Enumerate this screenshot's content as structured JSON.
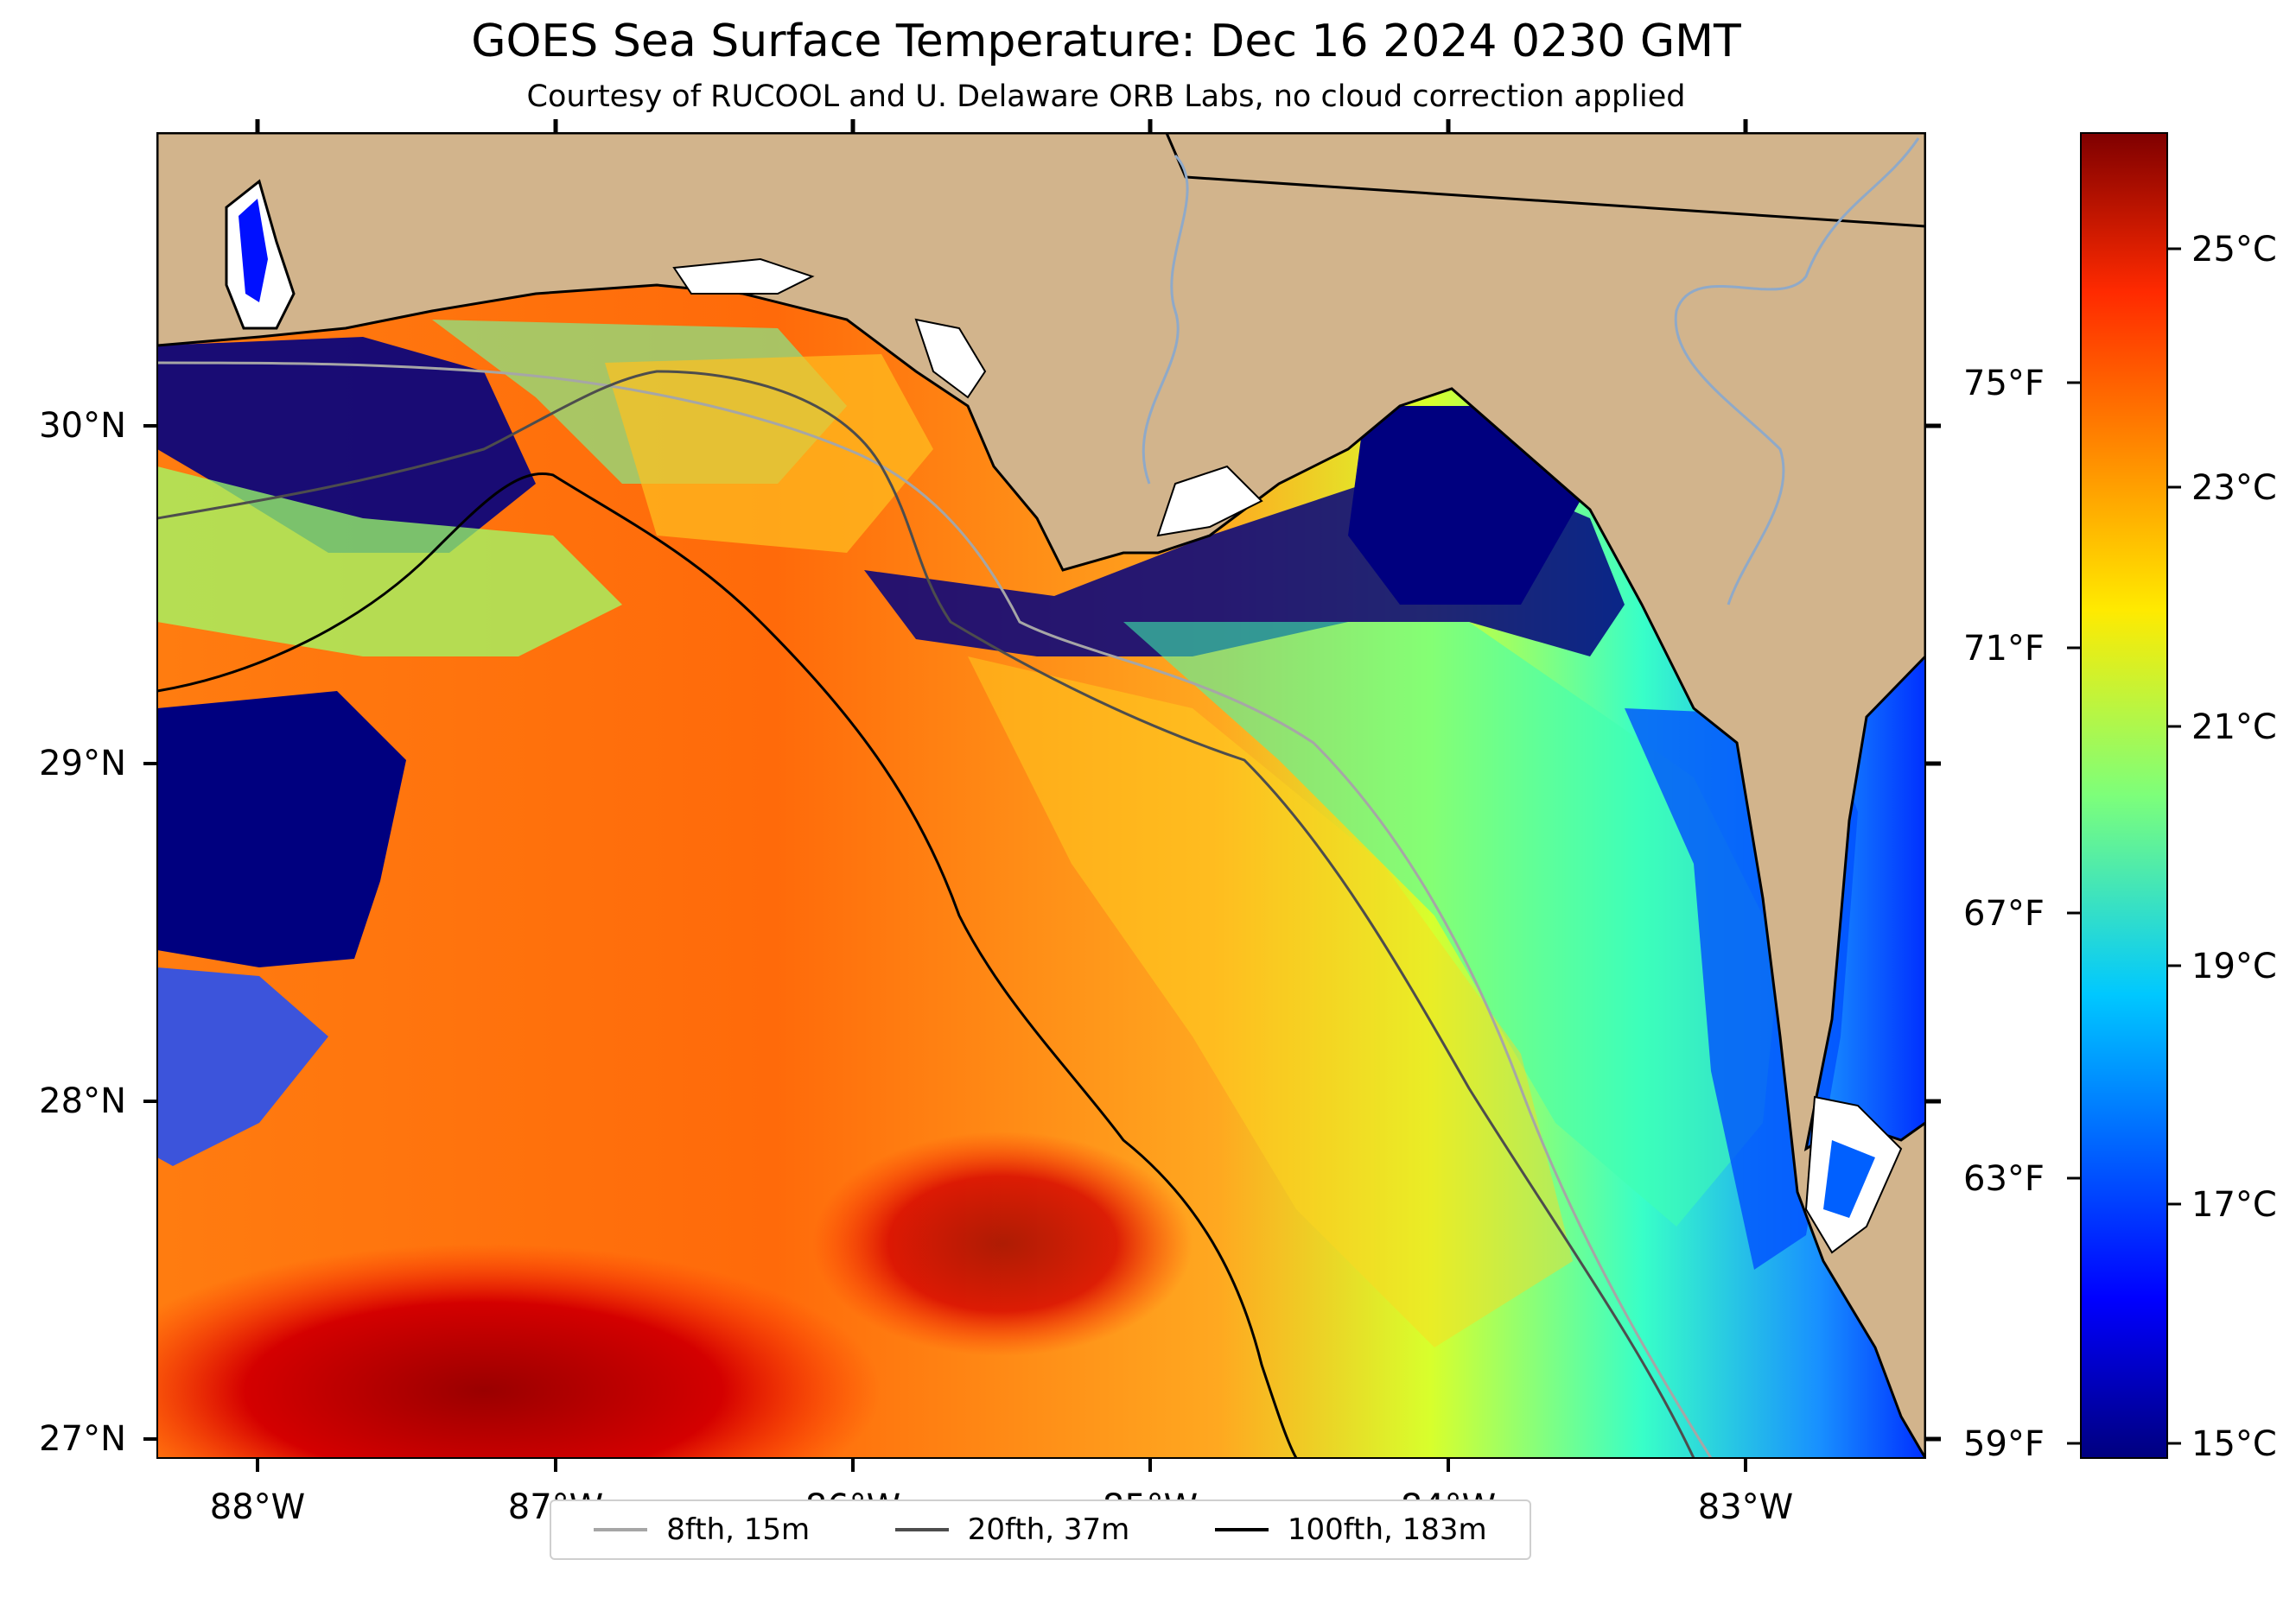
{
  "title": "GOES Sea Surface Temperature: Dec 16 2024 0230 GMT",
  "subtitle": "Courtesy of RUCOOL and U. Delaware ORB Labs, no cloud correction applied",
  "map": {
    "region": "Northeastern Gulf of Mexico / Florida Panhandle",
    "land_color": "#d2b48c",
    "coastline_color": "#000000",
    "river_color": "#8fa9c8",
    "lon_ticks": [
      "88°W",
      "87°W",
      "86°W",
      "85°W",
      "84°W",
      "83°W"
    ],
    "lat_ticks": [
      "30°N",
      "29°N",
      "28°N",
      "27°N"
    ]
  },
  "colorbar": {
    "colormap": "jet",
    "celsius_labels": [
      "25°C",
      "23°C",
      "21°C",
      "19°C",
      "17°C",
      "15°C"
    ],
    "fahrenheit_labels": [
      "75°F",
      "71°F",
      "67°F",
      "63°F",
      "59°F"
    ]
  },
  "legend": {
    "items": [
      {
        "label": "8fth, 15m",
        "color": "#a6a6a6"
      },
      {
        "label": "20fth, 37m",
        "color": "#4d4d4d"
      },
      {
        "label": "100fth, 183m",
        "color": "#000000"
      }
    ]
  }
}
